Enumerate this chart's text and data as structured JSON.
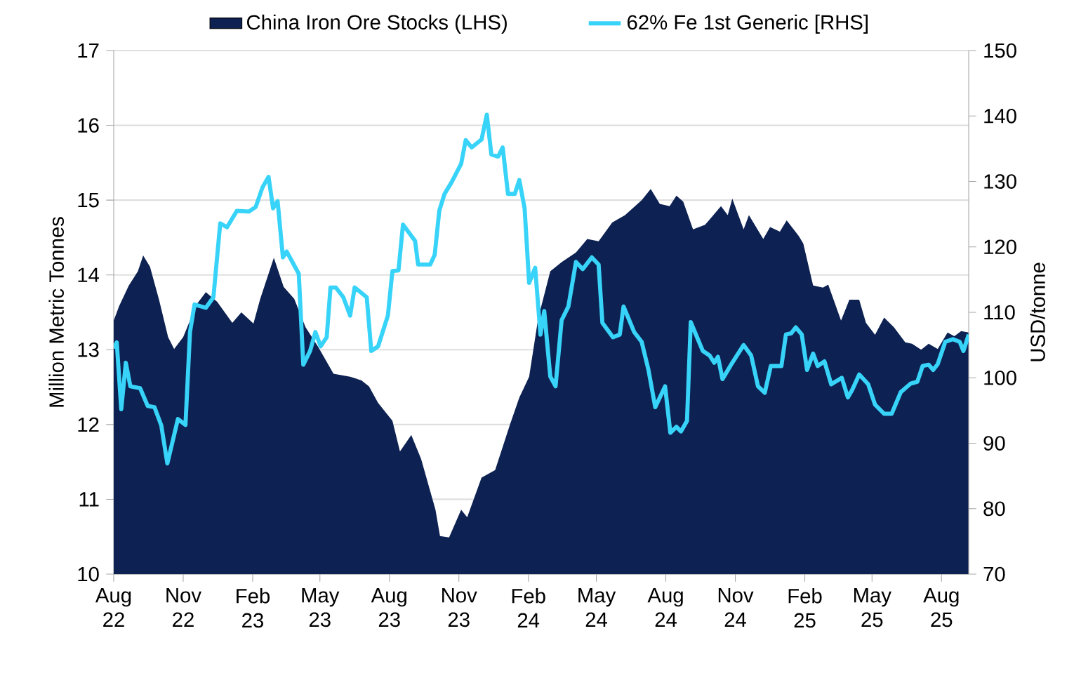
{
  "chart_data": {
    "type": "area",
    "ylabel": "Million Metric Tonnes",
    "y2label": "USD/tonne",
    "grid": "y",
    "legend": "top",
    "xlim": [
      "2022-08-01",
      "2025-09-06"
    ],
    "xticks": [
      {
        "value": "2022-08-01",
        "label": "Aug 22"
      },
      {
        "value": "2022-11-01",
        "label": "Nov 22"
      },
      {
        "value": "2023-02-01",
        "label": "Feb 23"
      },
      {
        "value": "2023-05-01",
        "label": "May 23"
      },
      {
        "value": "2023-08-01",
        "label": "Aug 23"
      },
      {
        "value": "2023-11-01",
        "label": "Nov 23"
      },
      {
        "value": "2024-02-01",
        "label": "Feb 24"
      },
      {
        "value": "2024-05-01",
        "label": "May 24"
      },
      {
        "value": "2024-08-01",
        "label": "Aug 24"
      },
      {
        "value": "2024-11-01",
        "label": "Nov 24"
      },
      {
        "value": "2025-02-01",
        "label": "Feb 25"
      },
      {
        "value": "2025-05-01",
        "label": "May 25"
      },
      {
        "value": "2025-08-01",
        "label": "Aug 25"
      }
    ],
    "ylim": [
      10,
      17
    ],
    "yticks": [
      10,
      11,
      12,
      13,
      14,
      15,
      16,
      17
    ],
    "y2lim": [
      70,
      150
    ],
    "y2ticks": [
      70,
      80,
      90,
      100,
      110,
      120,
      130,
      140,
      150
    ],
    "series": [
      {
        "name": "China Iron Ore Stocks (LHS)",
        "color": "#0d2252",
        "x": [
          "2022-08-01",
          "2022-08-08",
          "2022-08-21",
          "2022-09-02",
          "2022-09-09",
          "2022-09-18",
          "2022-09-30",
          "2022-10-12",
          "2022-10-20",
          "2022-11-01",
          "2022-11-19",
          "2022-12-01",
          "2022-12-16",
          "2023-01-05",
          "2023-01-17",
          "2023-02-02",
          "2023-02-11",
          "2023-03-01",
          "2023-03-14",
          "2023-03-28",
          "2023-04-12",
          "2023-04-28",
          "2023-05-19",
          "2023-06-10",
          "2023-06-25",
          "2023-07-05",
          "2023-07-17",
          "2023-08-05",
          "2023-08-15",
          "2023-08-30",
          "2023-09-12",
          "2023-10-01",
          "2023-10-07",
          "2023-10-19",
          "2023-11-04",
          "2023-11-12",
          "2023-12-01",
          "2023-12-19",
          "2024-01-08",
          "2024-01-20",
          "2024-02-02",
          "2024-02-14",
          "2024-03-01",
          "2024-03-16",
          "2024-04-04",
          "2024-04-19",
          "2024-05-04",
          "2024-05-22",
          "2024-06-08",
          "2024-06-30",
          "2024-07-12",
          "2024-07-24",
          "2024-08-06",
          "2024-08-15",
          "2024-08-24",
          "2024-09-06",
          "2024-09-22",
          "2024-10-13",
          "2024-10-22",
          "2024-10-28",
          "2024-11-12",
          "2024-11-19",
          "2024-12-08",
          "2024-12-17",
          "2024-12-30",
          "2025-01-08",
          "2025-01-24",
          "2025-01-30",
          "2025-02-12",
          "2025-02-25",
          "2025-03-04",
          "2025-03-21",
          "2025-04-01",
          "2025-04-14",
          "2025-04-23",
          "2025-05-05",
          "2025-05-17",
          "2025-05-30",
          "2025-06-14",
          "2025-06-23",
          "2025-07-05",
          "2025-07-15",
          "2025-07-27",
          "2025-08-09",
          "2025-08-18",
          "2025-08-27",
          "2025-09-06"
        ],
        "values": [
          13.39,
          13.58,
          13.86,
          14.05,
          14.26,
          14.11,
          13.67,
          13.17,
          13.01,
          13.17,
          13.61,
          13.77,
          13.64,
          13.36,
          13.5,
          13.35,
          13.68,
          14.23,
          13.84,
          13.68,
          13.3,
          13.05,
          12.68,
          12.64,
          12.59,
          12.51,
          12.29,
          12.05,
          11.64,
          11.86,
          11.54,
          10.86,
          10.51,
          10.49,
          10.86,
          10.76,
          11.29,
          11.39,
          12.01,
          12.36,
          12.64,
          13.42,
          14.05,
          14.17,
          14.3,
          14.48,
          14.45,
          14.7,
          14.8,
          15.0,
          15.15,
          14.95,
          14.92,
          15.06,
          14.98,
          14.61,
          14.67,
          14.92,
          14.8,
          15.02,
          14.61,
          14.8,
          14.48,
          14.64,
          14.58,
          14.73,
          14.52,
          14.42,
          13.86,
          13.83,
          13.87,
          13.39,
          13.67,
          13.67,
          13.36,
          13.2,
          13.43,
          13.3,
          13.1,
          13.08,
          13.0,
          13.08,
          13.01,
          13.23,
          13.18,
          13.25,
          13.23
        ]
      },
      {
        "name": "62% Fe 1st Generic [RHS]",
        "type": "line",
        "axis": "y2",
        "color": "#38d3f8",
        "x": [
          "2022-08-01",
          "2022-08-05",
          "2022-08-11",
          "2022-08-17",
          "2022-08-23",
          "2022-09-05",
          "2022-09-15",
          "2022-09-24",
          "2022-10-03",
          "2022-10-11",
          "2022-10-25",
          "2022-11-04",
          "2022-11-10",
          "2022-11-16",
          "2022-12-01",
          "2022-12-11",
          "2022-12-20",
          "2022-12-29",
          "2023-01-11",
          "2023-01-27",
          "2023-02-05",
          "2023-02-14",
          "2023-02-22",
          "2023-02-28",
          "2023-03-06",
          "2023-03-13",
          "2023-03-18",
          "2023-04-03",
          "2023-04-09",
          "2023-04-18",
          "2023-04-25",
          "2023-05-02",
          "2023-05-10",
          "2023-05-15",
          "2023-05-22",
          "2023-06-01",
          "2023-06-10",
          "2023-06-16",
          "2023-07-02",
          "2023-07-08",
          "2023-07-17",
          "2023-07-30",
          "2023-08-05",
          "2023-08-13",
          "2023-08-19",
          "2023-09-04",
          "2023-09-08",
          "2023-09-24",
          "2023-09-30",
          "2023-10-06",
          "2023-10-13",
          "2023-10-22",
          "2023-11-04",
          "2023-11-10",
          "2023-11-18",
          "2023-12-01",
          "2023-12-08",
          "2023-12-14",
          "2023-12-23",
          "2023-12-29",
          "2024-01-05",
          "2024-01-14",
          "2024-01-20",
          "2024-01-27",
          "2024-02-02",
          "2024-02-10",
          "2024-02-17",
          "2024-02-22",
          "2024-03-01",
          "2024-03-08",
          "2024-03-16",
          "2024-03-25",
          "2024-04-04",
          "2024-04-13",
          "2024-04-25",
          "2024-05-04",
          "2024-05-09",
          "2024-05-23",
          "2024-06-01",
          "2024-06-06",
          "2024-06-20",
          "2024-06-30",
          "2024-07-09",
          "2024-07-18",
          "2024-07-31",
          "2024-08-07",
          "2024-08-15",
          "2024-08-21",
          "2024-08-29",
          "2024-09-03",
          "2024-09-19",
          "2024-09-28",
          "2024-10-04",
          "2024-10-09",
          "2024-10-15",
          "2024-10-28",
          "2024-11-12",
          "2024-11-22",
          "2024-12-01",
          "2024-12-10",
          "2024-12-18",
          "2025-01-01",
          "2025-01-07",
          "2025-01-14",
          "2025-01-20",
          "2025-01-28",
          "2025-02-04",
          "2025-02-12",
          "2025-02-18",
          "2025-02-27",
          "2025-03-08",
          "2025-03-22",
          "2025-03-30",
          "2025-04-05",
          "2025-04-14",
          "2025-04-26",
          "2025-05-05",
          "2025-05-17",
          "2025-05-27",
          "2025-06-08",
          "2025-06-21",
          "2025-06-30",
          "2025-07-07",
          "2025-07-15",
          "2025-07-21",
          "2025-07-27",
          "2025-08-06",
          "2025-08-16",
          "2025-08-25",
          "2025-08-30",
          "2025-09-06"
        ],
        "values": [
          104.5,
          105.4,
          95.2,
          102.3,
          98.7,
          98.4,
          95.7,
          95.5,
          92.7,
          86.9,
          93.7,
          92.8,
          107.0,
          111.2,
          110.7,
          112.3,
          123.6,
          123.0,
          125.5,
          125.4,
          126.1,
          129.1,
          130.7,
          125.9,
          127.0,
          118.4,
          119.3,
          115.9,
          102.0,
          104.1,
          107.0,
          104.8,
          106.2,
          113.8,
          113.8,
          112.3,
          109.5,
          113.8,
          112.3,
          104.1,
          104.8,
          109.5,
          116.3,
          116.4,
          123.4,
          120.9,
          117.3,
          117.3,
          118.8,
          125.5,
          128.1,
          129.8,
          132.7,
          136.3,
          135.2,
          136.4,
          140.2,
          134.1,
          133.8,
          135.2,
          128.1,
          128.1,
          130.2,
          125.9,
          114.5,
          116.8,
          106.6,
          110.2,
          100.2,
          98.7,
          108.8,
          110.9,
          117.7,
          116.6,
          118.4,
          117.3,
          108.4,
          106.2,
          106.6,
          110.9,
          107.0,
          105.5,
          101.2,
          95.5,
          98.7,
          91.6,
          92.5,
          91.8,
          93.4,
          108.5,
          104.1,
          103.4,
          102.3,
          103.2,
          99.8,
          102.3,
          105.0,
          103.4,
          98.7,
          97.7,
          101.8,
          101.8,
          106.6,
          106.8,
          107.7,
          106.6,
          101.2,
          103.7,
          101.8,
          102.5,
          99.0,
          100.0,
          97.0,
          98.2,
          100.5,
          99.0,
          95.9,
          94.5,
          94.5,
          97.8,
          99.1,
          99.4,
          101.8,
          102.0,
          101.2,
          102.1,
          105.5,
          105.9,
          105.5,
          104.1,
          106.6
        ]
      }
    ]
  }
}
